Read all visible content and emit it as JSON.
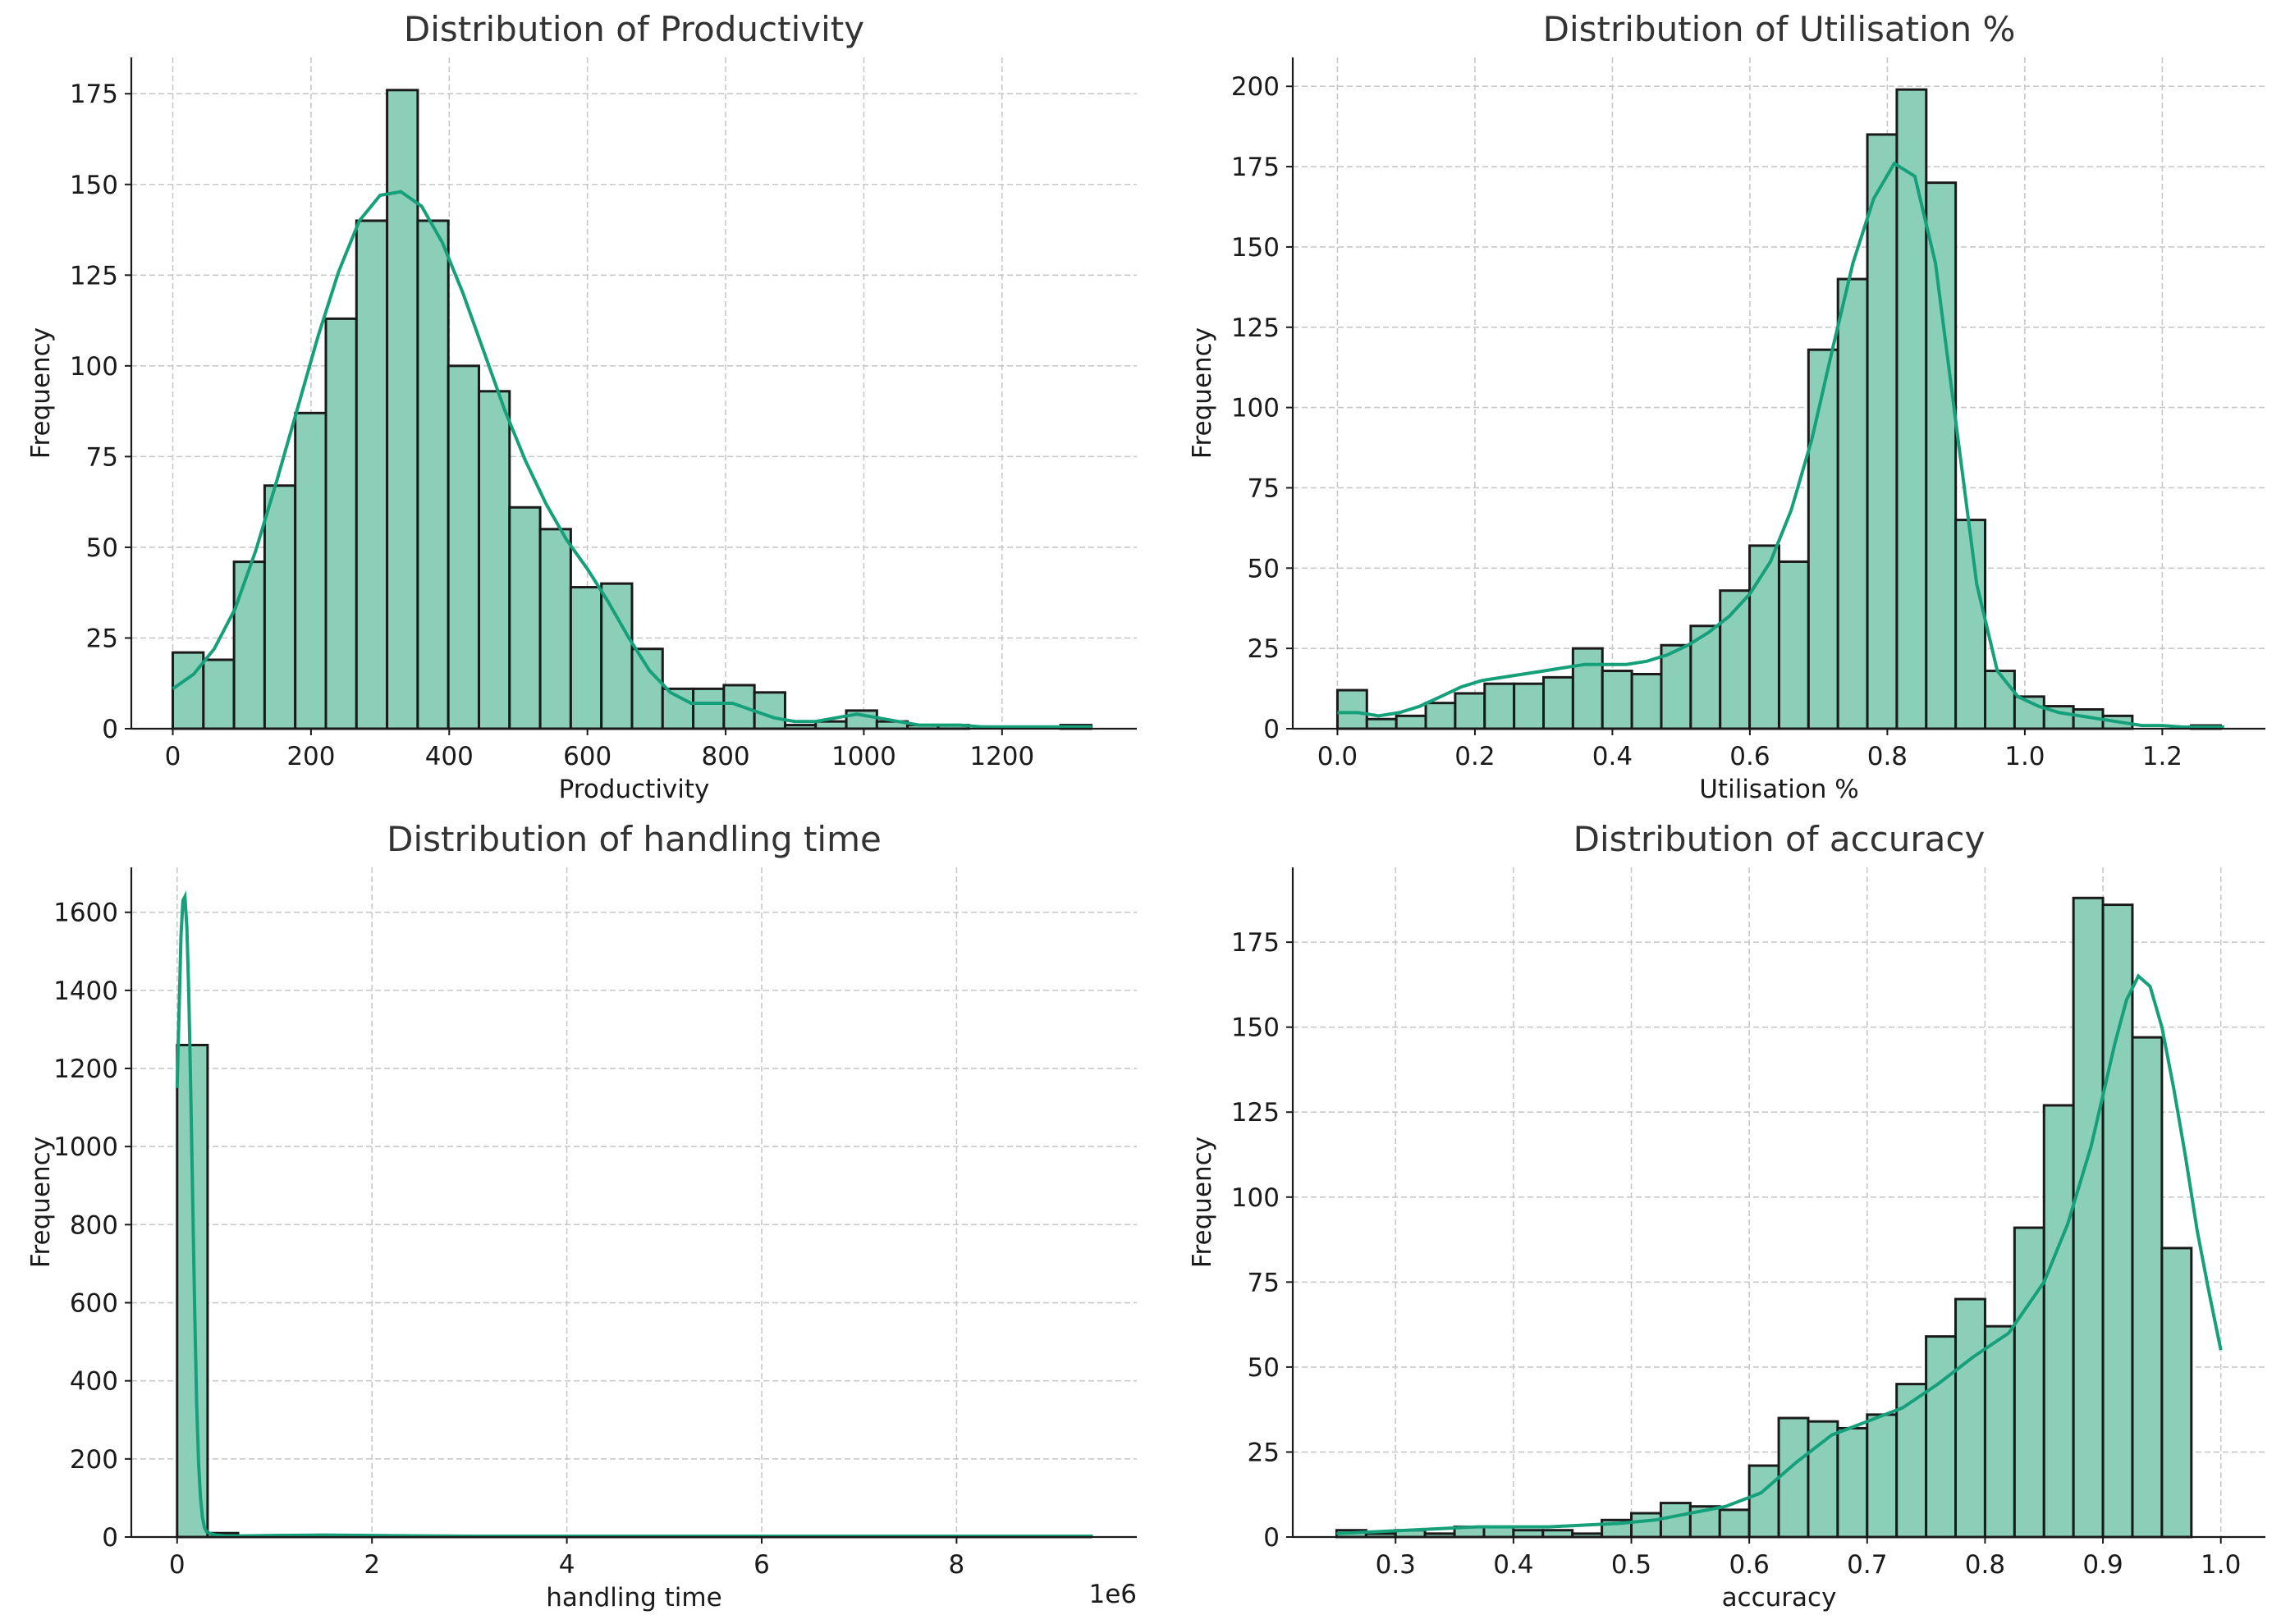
{
  "chart_data": [
    {
      "type": "bar",
      "title": "Distribution of Productivity",
      "xlabel": "Productivity",
      "ylabel": "Frequency",
      "offset_text": "",
      "xlim": [
        -60,
        1395
      ],
      "ylim": [
        0,
        185
      ],
      "xticks": [
        0,
        200,
        400,
        600,
        800,
        1000,
        1200
      ],
      "yticks": [
        0,
        25,
        50,
        75,
        100,
        125,
        150,
        175
      ],
      "bin_start": 0,
      "bin_width": 44.3,
      "values": [
        21,
        19,
        46,
        67,
        87,
        113,
        140,
        176,
        140,
        100,
        93,
        61,
        55,
        39,
        40,
        22,
        11,
        11,
        12,
        10,
        1,
        2,
        5,
        2,
        1,
        1,
        0,
        0,
        0,
        1
      ],
      "kde_x": [
        0,
        30,
        60,
        90,
        120,
        150,
        180,
        210,
        240,
        270,
        300,
        330,
        360,
        390,
        420,
        450,
        480,
        510,
        540,
        570,
        600,
        630,
        660,
        690,
        720,
        750,
        780,
        810,
        840,
        870,
        900,
        930,
        960,
        990,
        1020,
        1050,
        1080,
        1110,
        1140,
        1170,
        1200,
        1250,
        1300,
        1330
      ],
      "kde_y": [
        11,
        15,
        22,
        33,
        49,
        68,
        88,
        108,
        126,
        140,
        147,
        148,
        144,
        134,
        120,
        104,
        88,
        74,
        62,
        52,
        44,
        35,
        25,
        16,
        10,
        7,
        7,
        7,
        5,
        3,
        2,
        2,
        3,
        4,
        3,
        2,
        1,
        1,
        1,
        0.5,
        0.5,
        0.5,
        0.5,
        0.5
      ]
    },
    {
      "type": "bar",
      "title": "Distribution of Utilisation %",
      "xlabel": "Utilisation %",
      "ylabel": "Frequency",
      "offset_text": "",
      "xlim": [
        -0.065,
        1.35
      ],
      "ylim": [
        0,
        209
      ],
      "xticks": [
        0.0,
        0.2,
        0.4,
        0.6,
        0.8,
        1.0,
        1.2
      ],
      "yticks": [
        0,
        25,
        50,
        75,
        100,
        125,
        150,
        175,
        200
      ],
      "bin_start": 0,
      "bin_width": 0.04283,
      "values": [
        12,
        3,
        4,
        8,
        11,
        14,
        14,
        16,
        25,
        18,
        17,
        26,
        32,
        43,
        57,
        52,
        118,
        140,
        185,
        199,
        170,
        65,
        18,
        10,
        7,
        6,
        4,
        0,
        0,
        1
      ],
      "kde_x": [
        0.0,
        0.03,
        0.06,
        0.09,
        0.12,
        0.15,
        0.18,
        0.21,
        0.24,
        0.27,
        0.3,
        0.33,
        0.36,
        0.39,
        0.42,
        0.45,
        0.48,
        0.51,
        0.54,
        0.57,
        0.6,
        0.63,
        0.66,
        0.69,
        0.72,
        0.75,
        0.78,
        0.81,
        0.84,
        0.87,
        0.9,
        0.93,
        0.96,
        0.99,
        1.02,
        1.05,
        1.08,
        1.11,
        1.14,
        1.17,
        1.2,
        1.23,
        1.26,
        1.29
      ],
      "kde_y": [
        5,
        5,
        4,
        5,
        7,
        10,
        13,
        15,
        16,
        17,
        18,
        19,
        20,
        20,
        20,
        21,
        23,
        26,
        30,
        35,
        42,
        52,
        68,
        90,
        118,
        145,
        165,
        176,
        172,
        145,
        95,
        45,
        18,
        10,
        7,
        5,
        4,
        3,
        2,
        1,
        1,
        0.5,
        0.5,
        0.5
      ]
    },
    {
      "type": "bar",
      "title": "Distribution of handling time",
      "xlabel": "handling time",
      "ylabel": "Frequency",
      "offset_text": "1e6",
      "xlim": [
        -0.47,
        9.85
      ],
      "ylim": [
        0,
        1715
      ],
      "xticks": [
        0,
        2,
        4,
        6,
        8
      ],
      "yticks": [
        0,
        200,
        400,
        600,
        800,
        1000,
        1200,
        1400,
        1600
      ],
      "bin_start": 0,
      "bin_width": 0.3126,
      "values": [
        1260,
        10,
        3,
        2,
        1,
        2,
        1,
        1,
        1,
        1,
        1,
        1,
        1,
        1,
        1,
        1,
        1,
        1,
        1,
        1,
        1,
        1,
        1,
        1,
        1,
        1,
        1,
        1,
        1,
        1
      ],
      "kde_x": [
        0,
        0.02,
        0.04,
        0.06,
        0.08,
        0.1,
        0.12,
        0.14,
        0.16,
        0.18,
        0.2,
        0.22,
        0.24,
        0.26,
        0.28,
        0.3,
        0.35,
        0.4,
        0.5,
        0.7,
        1.0,
        1.5,
        2.0,
        2.5,
        3.0,
        4.0,
        5.0,
        6.0,
        7.0,
        8.0,
        9.4
      ],
      "kde_y": [
        1150,
        1350,
        1540,
        1630,
        1640,
        1560,
        1390,
        1140,
        860,
        580,
        350,
        190,
        100,
        50,
        25,
        14,
        8,
        5,
        3,
        3,
        4,
        5,
        4,
        3,
        2,
        2,
        2,
        2,
        2,
        2,
        2
      ]
    },
    {
      "type": "bar",
      "title": "Distribution of accuracy",
      "xlabel": "accuracy",
      "ylabel": "Frequency",
      "offset_text": "",
      "xlim": [
        0.2128,
        1.0378
      ],
      "ylim": [
        0,
        197
      ],
      "xticks": [
        0.3,
        0.4,
        0.5,
        0.6,
        0.7,
        0.8,
        0.9,
        1.0
      ],
      "yticks": [
        0,
        25,
        50,
        75,
        100,
        125,
        150,
        175
      ],
      "bin_start": 0.25,
      "bin_width": 0.025,
      "values": [
        2,
        1,
        2,
        1,
        3,
        3,
        2,
        2,
        1,
        5,
        7,
        10,
        9,
        8,
        21,
        35,
        34,
        32,
        36,
        45,
        59,
        70,
        62,
        91,
        127,
        188,
        186,
        147,
        85
      ],
      "kde_x": [
        0.25,
        0.28,
        0.31,
        0.34,
        0.37,
        0.4,
        0.43,
        0.46,
        0.49,
        0.52,
        0.55,
        0.58,
        0.61,
        0.64,
        0.67,
        0.7,
        0.73,
        0.76,
        0.79,
        0.82,
        0.85,
        0.87,
        0.89,
        0.9,
        0.91,
        0.92,
        0.93,
        0.94,
        0.95,
        0.96,
        0.97,
        0.98,
        0.99,
        1.0
      ],
      "kde_y": [
        1,
        1.5,
        2,
        2.5,
        3,
        3,
        3,
        3.5,
        4,
        5,
        7,
        9,
        13,
        22,
        30,
        34,
        38,
        45,
        53,
        60,
        75,
        92,
        115,
        130,
        145,
        158,
        165,
        162,
        150,
        132,
        112,
        90,
        72,
        55
      ]
    }
  ]
}
